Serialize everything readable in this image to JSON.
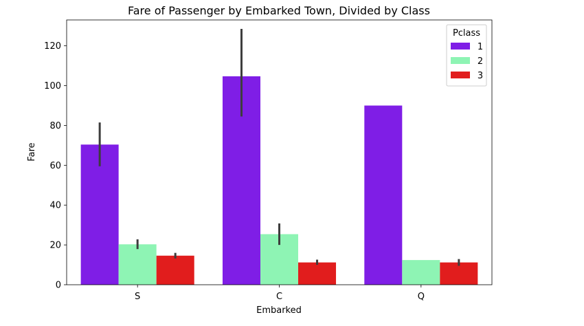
{
  "chart_data": {
    "type": "bar",
    "title": "Fare of Passenger by Embarked Town, Divided by Class",
    "xlabel": "Embarked",
    "ylabel": "Fare",
    "categories": [
      "S",
      "C",
      "Q"
    ],
    "ylim": [
      0,
      133
    ],
    "yticks": [
      0,
      20,
      40,
      60,
      80,
      100,
      120
    ],
    "grid": false,
    "legend": {
      "title": "Pclass",
      "placement": "top-right"
    },
    "series": [
      {
        "name": "1",
        "color": "#7f1ee6",
        "values": [
          70.4,
          104.7,
          90.0
        ],
        "ci_low": [
          59.5,
          84.5,
          null
        ],
        "ci_high": [
          81.5,
          128.5,
          null
        ]
      },
      {
        "name": "2",
        "color": "#8ef4b4",
        "values": [
          20.3,
          25.4,
          12.4
        ],
        "ci_low": [
          17.9,
          20.0,
          null
        ],
        "ci_high": [
          22.8,
          30.8,
          null
        ]
      },
      {
        "name": "3",
        "color": "#e11d1d",
        "values": [
          14.6,
          11.2,
          11.2
        ],
        "ci_low": [
          13.2,
          10.0,
          9.5
        ],
        "ci_high": [
          16.0,
          12.6,
          12.9
        ]
      }
    ]
  }
}
